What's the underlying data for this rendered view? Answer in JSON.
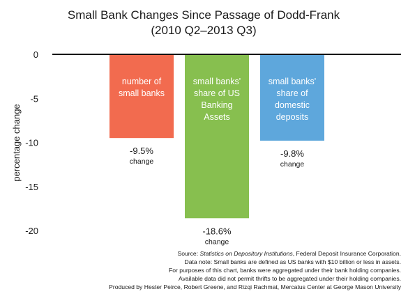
{
  "chart_data": {
    "type": "bar",
    "title": "Small Bank Changes Since Passage of Dodd-Frank",
    "subtitle": "(2010 Q2–2013 Q3)",
    "xlabel": "",
    "ylabel": "percentage change",
    "ylim": [
      -20,
      0
    ],
    "yticks": [
      "0",
      "-5",
      "-10",
      "-15",
      "-20"
    ],
    "ytick_values": [
      0,
      -5,
      -10,
      -15,
      -20
    ],
    "grid": false,
    "categories": [
      [
        "number of",
        "small banks"
      ],
      [
        "small banks'",
        "share of US",
        "Banking",
        "Assets"
      ],
      [
        "small banks'",
        "share of",
        "domestic",
        "deposits"
      ]
    ],
    "values": [
      -9.5,
      -18.6,
      -9.8
    ],
    "value_labels": [
      "-9.5%",
      "-18.6%",
      "-9.8%"
    ],
    "value_sublabel": "change",
    "colors": [
      "#f26b4f",
      "#87bf4f",
      "#5ea7dc"
    ],
    "notes": {
      "source_prefix": "Source: ",
      "source_title": "Statistics on Depository Institutions",
      "source_suffix": ", Federal Deposit Insurance Corporation.",
      "lines": [
        "Data note: Small banks are defined as US banks with $10 billion or less in assets.",
        "For purposes of this chart, banks were aggregated under their bank holding companies.",
        "Available data did not permit thrifts to be aggregated under their holding companies.",
        "Produced by Hester Peirce, Robert Greene, and Rizqi Rachmat, Mercatus Center at George Mason University"
      ]
    }
  }
}
